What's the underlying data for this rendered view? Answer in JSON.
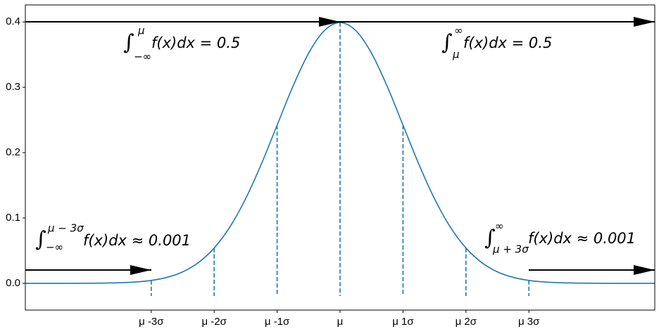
{
  "chart_data": {
    "type": "line",
    "x": [
      -5,
      -4.75,
      -4.5,
      -4.25,
      -4,
      -3.75,
      -3.5,
      -3.25,
      -3,
      -2.75,
      -2.5,
      -2.25,
      -2,
      -1.75,
      -1.5,
      -1.25,
      -1,
      -0.75,
      -0.5,
      -0.25,
      0,
      0.25,
      0.5,
      0.75,
      1,
      1.25,
      1.5,
      1.75,
      2,
      2.25,
      2.5,
      2.75,
      3,
      3.25,
      3.5,
      3.75,
      4,
      4.25,
      4.5,
      4.75,
      5
    ],
    "series": [
      {
        "color": "#1f77b4",
        "values": [
          0,
          0,
          0,
          0,
          0.0001,
          0.0004,
          0.0009,
          0.002,
          0.0044,
          0.0091,
          0.0175,
          0.0317,
          0.054,
          0.0863,
          0.1295,
          0.1826,
          0.242,
          0.3011,
          0.3521,
          0.3867,
          0.3989,
          0.3867,
          0.3521,
          0.3011,
          0.242,
          0.1826,
          0.1295,
          0.0863,
          0.054,
          0.0317,
          0.0175,
          0.0091,
          0.0044,
          0.002,
          0.0009,
          0.0004,
          0.0001,
          0,
          0,
          0,
          0
        ]
      }
    ],
    "dashed_lines": {
      "color": "#1f77b4",
      "x": [
        -3,
        -2,
        -1,
        0,
        1,
        2,
        3
      ],
      "values": [
        0.0044,
        0.054,
        0.242,
        0.3989,
        0.242,
        0.054,
        0.0044
      ]
    },
    "xlim": [
      -5,
      5
    ],
    "ylim": [
      -0.041,
      0.426
    ],
    "xticks": [
      {
        "value": -3,
        "label": "μ -3σ"
      },
      {
        "value": -2,
        "label": "μ -2σ"
      },
      {
        "value": -1,
        "label": "μ -1σ"
      },
      {
        "value": 0,
        "label": "μ"
      },
      {
        "value": 1,
        "label": "μ 1σ"
      },
      {
        "value": 2,
        "label": "μ 2σ"
      },
      {
        "value": 3,
        "label": "μ 3σ"
      }
    ],
    "yticks": [
      {
        "value": 0,
        "label": "0.0"
      },
      0.1,
      0.2,
      0.3,
      0.4
    ],
    "annotations": [
      {
        "symbol": "∫",
        "upper": "μ",
        "lower": "−∞",
        "body": "f(x)dx = 0.5"
      },
      {
        "symbol": "∫",
        "upper": "∞",
        "lower": "μ",
        "body": "f(x)dx = 0.5"
      },
      {
        "symbol": "∫",
        "upper": "μ − 3σ",
        "lower": "−∞",
        "body": "f(x)dx ≈ 0.001"
      },
      {
        "symbol": "∫",
        "upper": "∞",
        "lower": "μ + 3σ",
        "body": "f(x)dx ≈ 0.001"
      }
    ]
  }
}
